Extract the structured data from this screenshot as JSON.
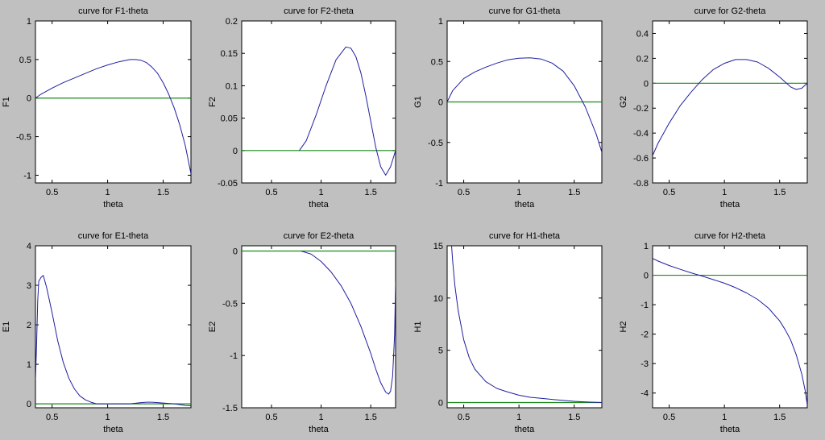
{
  "figure": {
    "background": "#c0c0c0",
    "curve_color": "#1f1fa0",
    "zero_line_color": "#1a8a1a"
  },
  "chart_data": [
    {
      "type": "line",
      "title": "curve for F1-theta",
      "xlabel": "theta",
      "ylabel": "F1",
      "xlim": [
        0.35,
        1.75
      ],
      "ylim": [
        -1.1,
        1
      ],
      "xticks": [
        0.5,
        1,
        1.5
      ],
      "xtick_labels": [
        "0.5",
        "1",
        "1.5"
      ],
      "yticks": [
        -1,
        -0.5,
        0,
        0.5,
        1
      ],
      "ytick_labels": [
        "-1",
        "-0.5",
        "0",
        "0.5",
        "1"
      ],
      "zero_line": 0,
      "series": [
        {
          "x": [
            0.35,
            0.4,
            0.5,
            0.6,
            0.7,
            0.8,
            0.9,
            1.0,
            1.1,
            1.2,
            1.25,
            1.3,
            1.35,
            1.4,
            1.45,
            1.5,
            1.55,
            1.6,
            1.65,
            1.7,
            1.75
          ],
          "values": [
            0.0,
            0.05,
            0.13,
            0.2,
            0.26,
            0.32,
            0.38,
            0.43,
            0.47,
            0.5,
            0.5,
            0.49,
            0.46,
            0.4,
            0.32,
            0.2,
            0.05,
            -0.13,
            -0.35,
            -0.62,
            -0.98
          ]
        }
      ]
    },
    {
      "type": "line",
      "title": "curve for F2-theta",
      "xlabel": "theta",
      "ylabel": "F2",
      "xlim": [
        0.2,
        1.75
      ],
      "ylim": [
        -0.05,
        0.2
      ],
      "xticks": [
        0.5,
        1,
        1.5
      ],
      "xtick_labels": [
        "0.5",
        "1",
        "1.5"
      ],
      "yticks": [
        -0.05,
        0,
        0.05,
        0.1,
        0.15,
        0.2
      ],
      "ytick_labels": [
        "-0.05",
        "0",
        "0.05",
        "0.1",
        "0.15",
        "0.2"
      ],
      "zero_line": 0,
      "series": [
        {
          "x": [
            0.78,
            0.85,
            0.95,
            1.05,
            1.15,
            1.25,
            1.3,
            1.35,
            1.4,
            1.45,
            1.5,
            1.55,
            1.6,
            1.65,
            1.7,
            1.75
          ],
          "values": [
            0.0,
            0.015,
            0.055,
            0.1,
            0.14,
            0.16,
            0.158,
            0.145,
            0.12,
            0.085,
            0.045,
            0.005,
            -0.025,
            -0.038,
            -0.025,
            0.0
          ]
        }
      ]
    },
    {
      "type": "line",
      "title": "curve for G1-theta",
      "xlabel": "theta",
      "ylabel": "G1",
      "xlim": [
        0.35,
        1.75
      ],
      "ylim": [
        -1,
        1
      ],
      "xticks": [
        0.5,
        1,
        1.5
      ],
      "xtick_labels": [
        "0.5",
        "1",
        "1.5"
      ],
      "yticks": [
        -1,
        -0.5,
        0,
        0.5,
        1
      ],
      "ytick_labels": [
        "-1",
        "-0.5",
        "0",
        "0.5",
        "1"
      ],
      "zero_line": 0,
      "series": [
        {
          "x": [
            0.35,
            0.4,
            0.5,
            0.6,
            0.7,
            0.8,
            0.9,
            1.0,
            1.1,
            1.2,
            1.3,
            1.4,
            1.5,
            1.6,
            1.7,
            1.75
          ],
          "values": [
            0.0,
            0.14,
            0.29,
            0.37,
            0.43,
            0.48,
            0.52,
            0.54,
            0.545,
            0.53,
            0.48,
            0.38,
            0.2,
            -0.06,
            -0.4,
            -0.62
          ]
        }
      ]
    },
    {
      "type": "line",
      "title": "curve for G2-theta",
      "xlabel": "theta",
      "ylabel": "G2",
      "xlim": [
        0.35,
        1.75
      ],
      "ylim": [
        -0.8,
        0.5
      ],
      "xticks": [
        0.5,
        1,
        1.5
      ],
      "xtick_labels": [
        "0.5",
        "1",
        "1.5"
      ],
      "yticks": [
        -0.8,
        -0.6,
        -0.4,
        -0.2,
        0,
        0.2,
        0.4
      ],
      "ytick_labels": [
        "-0.8",
        "-0.6",
        "-0.4",
        "-0.2",
        "0",
        "0.2",
        "0.4"
      ],
      "zero_line": 0,
      "series": [
        {
          "x": [
            0.35,
            0.4,
            0.5,
            0.6,
            0.7,
            0.8,
            0.9,
            1.0,
            1.1,
            1.2,
            1.3,
            1.4,
            1.5,
            1.55,
            1.6,
            1.65,
            1.7,
            1.75
          ],
          "values": [
            -0.58,
            -0.48,
            -0.32,
            -0.18,
            -0.07,
            0.03,
            0.11,
            0.16,
            0.19,
            0.19,
            0.17,
            0.12,
            0.05,
            0.01,
            -0.03,
            -0.05,
            -0.04,
            0.0
          ]
        }
      ]
    },
    {
      "type": "line",
      "title": "curve for E1-theta",
      "xlabel": "theta",
      "ylabel": "E1",
      "xlim": [
        0.35,
        1.75
      ],
      "ylim": [
        -0.1,
        4
      ],
      "xticks": [
        0.5,
        1,
        1.5
      ],
      "xtick_labels": [
        "0.5",
        "1",
        "1.5"
      ],
      "yticks": [
        0,
        1,
        2,
        3,
        4
      ],
      "ytick_labels": [
        "0",
        "1",
        "2",
        "3",
        "4"
      ],
      "zero_line": 0,
      "series": [
        {
          "x": [
            0.35,
            0.36,
            0.37,
            0.38,
            0.4,
            0.42,
            0.45,
            0.5,
            0.55,
            0.6,
            0.65,
            0.7,
            0.75,
            0.8,
            0.85,
            0.9,
            0.95,
            1.0,
            1.2,
            1.3,
            1.35,
            1.4,
            1.45,
            1.5,
            1.6,
            1.7,
            1.75
          ],
          "values": [
            0.6,
            1.5,
            2.6,
            3.1,
            3.2,
            3.25,
            2.95,
            2.3,
            1.6,
            1.05,
            0.65,
            0.38,
            0.2,
            0.1,
            0.04,
            0.0,
            0.0,
            0.0,
            0.0,
            0.03,
            0.04,
            0.04,
            0.03,
            0.02,
            0.0,
            -0.04,
            -0.05
          ]
        }
      ]
    },
    {
      "type": "line",
      "title": "curve for E2-theta",
      "xlabel": "theta",
      "ylabel": "E2",
      "xlim": [
        0.2,
        1.75
      ],
      "ylim": [
        -1.5,
        0.05
      ],
      "xticks": [
        0.5,
        1,
        1.5
      ],
      "xtick_labels": [
        "0.5",
        "1",
        "1.5"
      ],
      "yticks": [
        -1.5,
        -1,
        -0.5,
        0
      ],
      "ytick_labels": [
        "-1.5",
        "-1",
        "-0.5",
        "0"
      ],
      "zero_line": 0,
      "series": [
        {
          "x": [
            0.8,
            0.9,
            1.0,
            1.1,
            1.2,
            1.3,
            1.4,
            1.5,
            1.55,
            1.6,
            1.65,
            1.68,
            1.7,
            1.72,
            1.74,
            1.75
          ],
          "values": [
            0.0,
            -0.03,
            -0.1,
            -0.2,
            -0.33,
            -0.5,
            -0.72,
            -0.98,
            -1.13,
            -1.26,
            -1.35,
            -1.37,
            -1.34,
            -1.2,
            -0.8,
            -0.3
          ]
        }
      ]
    },
    {
      "type": "line",
      "title": "curve for H1-theta",
      "xlabel": "theta",
      "ylabel": "H1",
      "xlim": [
        0.35,
        1.75
      ],
      "ylim": [
        -0.5,
        15
      ],
      "xticks": [
        0.5,
        1,
        1.5
      ],
      "xtick_labels": [
        "0.5",
        "1",
        "1.5"
      ],
      "yticks": [
        0,
        5,
        10,
        15
      ],
      "ytick_labels": [
        "0",
        "5",
        "10",
        "15"
      ],
      "zero_line": 0,
      "series": [
        {
          "x": [
            0.39,
            0.4,
            0.42,
            0.45,
            0.5,
            0.55,
            0.6,
            0.7,
            0.8,
            0.9,
            1.0,
            1.1,
            1.2,
            1.3,
            1.4,
            1.5,
            1.6,
            1.7,
            1.75
          ],
          "values": [
            15,
            13.5,
            11.2,
            8.8,
            6.0,
            4.3,
            3.2,
            2.0,
            1.35,
            1.0,
            0.7,
            0.5,
            0.4,
            0.3,
            0.2,
            0.12,
            0.06,
            0.02,
            0.0
          ]
        }
      ]
    },
    {
      "type": "line",
      "title": "curve for H2-theta",
      "xlabel": "theta",
      "ylabel": "H2",
      "xlim": [
        0.35,
        1.75
      ],
      "ylim": [
        -4.5,
        1
      ],
      "xticks": [
        0.5,
        1,
        1.5
      ],
      "xtick_labels": [
        "0.5",
        "1",
        "1.5"
      ],
      "yticks": [
        -4,
        -3,
        -2,
        -1,
        0,
        1
      ],
      "ytick_labels": [
        "-4",
        "-3",
        "-2",
        "-1",
        "0",
        "1"
      ],
      "zero_line": 0,
      "series": [
        {
          "x": [
            0.35,
            0.4,
            0.5,
            0.6,
            0.7,
            0.8,
            0.9,
            1.0,
            1.1,
            1.2,
            1.3,
            1.4,
            1.5,
            1.55,
            1.6,
            1.65,
            1.7,
            1.73,
            1.75
          ],
          "values": [
            0.57,
            0.48,
            0.33,
            0.2,
            0.08,
            -0.03,
            -0.15,
            -0.27,
            -0.42,
            -0.6,
            -0.82,
            -1.12,
            -1.55,
            -1.85,
            -2.2,
            -2.7,
            -3.35,
            -3.9,
            -4.4
          ]
        }
      ]
    }
  ]
}
